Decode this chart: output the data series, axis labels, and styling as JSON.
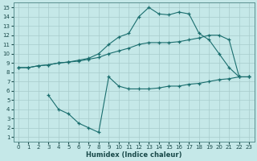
{
  "xlabel": "Humidex (Indice chaleur)",
  "bg_color": "#c5e8e8",
  "line_color": "#1a6e6e",
  "grid_color": "#a8cccc",
  "xlim": [
    -0.5,
    23.5
  ],
  "ylim": [
    0.5,
    15.5
  ],
  "xticks": [
    0,
    1,
    2,
    3,
    4,
    5,
    6,
    7,
    8,
    9,
    10,
    11,
    12,
    13,
    14,
    15,
    16,
    17,
    18,
    19,
    20,
    21,
    22,
    23
  ],
  "yticks": [
    1,
    2,
    3,
    4,
    5,
    6,
    7,
    8,
    9,
    10,
    11,
    12,
    13,
    14,
    15
  ],
  "line_top_x": [
    0,
    1,
    2,
    3,
    4,
    5,
    6,
    7,
    8,
    9,
    10,
    11,
    12,
    13,
    14,
    15,
    16,
    17,
    18,
    19,
    20,
    21,
    22,
    23
  ],
  "line_top_y": [
    8.5,
    8.5,
    8.7,
    8.8,
    9.0,
    9.1,
    9.3,
    9.5,
    10.0,
    11.0,
    11.8,
    12.2,
    14.0,
    15.0,
    14.3,
    14.2,
    14.5,
    14.3,
    12.2,
    11.5,
    10.0,
    8.5,
    7.5,
    7.5
  ],
  "line_mid_x": [
    0,
    1,
    2,
    3,
    4,
    5,
    6,
    7,
    8,
    9,
    10,
    11,
    12,
    13,
    14,
    15,
    16,
    17,
    18,
    19,
    20,
    21,
    22,
    23
  ],
  "line_mid_y": [
    8.5,
    8.5,
    8.7,
    8.8,
    9.0,
    9.1,
    9.2,
    9.4,
    9.6,
    10.0,
    10.3,
    10.6,
    11.0,
    11.2,
    11.2,
    11.2,
    11.3,
    11.5,
    11.7,
    12.0,
    12.0,
    11.5,
    7.5,
    7.5
  ],
  "line_bot_x": [
    3,
    4,
    5,
    6,
    7,
    8,
    9,
    10,
    11,
    12,
    13,
    14,
    15,
    16,
    17,
    18,
    19,
    20,
    21,
    22,
    23
  ],
  "line_bot_y": [
    5.5,
    4.0,
    3.5,
    2.5,
    2.0,
    1.5,
    7.5,
    6.5,
    6.2,
    6.2,
    6.2,
    6.3,
    6.5,
    6.5,
    6.7,
    6.8,
    7.0,
    7.2,
    7.3,
    7.5,
    7.5
  ]
}
